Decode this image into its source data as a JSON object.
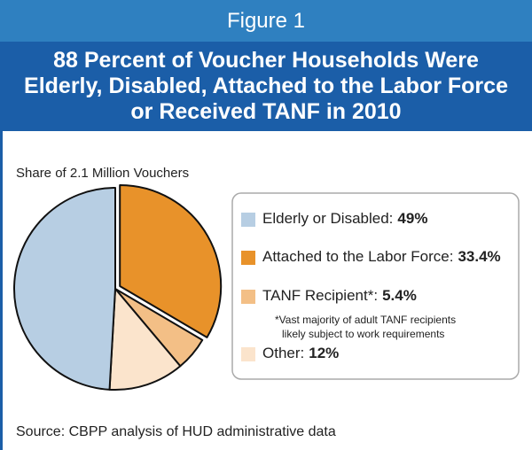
{
  "chart_data": {
    "type": "pie",
    "figure_label": "Figure 1",
    "title": "88 Percent of Voucher Households Were Elderly, Disabled, Attached to the Labor Force or Received TANF in 2010",
    "subtitle": "Share of 2.1 Million Vouchers",
    "categories": [
      "Elderly or Disabled:",
      "Attached to the Labor Force:",
      "TANF Recipient*:",
      "Other:"
    ],
    "values": [
      49,
      33.4,
      5.4,
      12
    ],
    "value_labels": [
      "49%",
      "33.4%",
      "5.4%",
      "12%"
    ],
    "colors": [
      "#b7cee3",
      "#e8922a",
      "#f3bf86",
      "#fbe4cc"
    ],
    "footnote": [
      "*Vast majority of adult TANF recipients",
      "likely subject to work requirements"
    ],
    "source": "Source: CBPP analysis of HUD administrative data"
  }
}
